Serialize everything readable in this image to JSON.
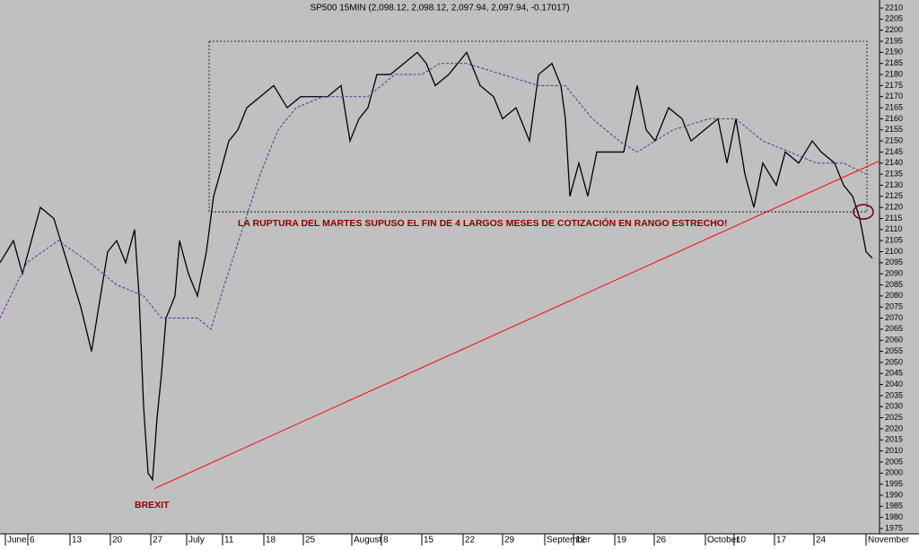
{
  "chart_data": {
    "type": "line",
    "title": "SP500 15MIN (2,098.12, 2,098.12, 2,097.94, 2,097.94, -0.17017)",
    "annotations": [
      "LA RUPTURA DEL MARTES SUPUSO EL FIN DE 4 LARGOS MESES DE COTIZACIÓN EN RANGO ESTRECHO!",
      "BREXIT"
    ],
    "xlim": [
      0,
      98
    ],
    "ylim": [
      1975,
      2210
    ],
    "grid": false,
    "background": "#c0c0c0",
    "xticks": [
      {
        "value": 0.8,
        "label": "June"
      },
      {
        "value": 3.3,
        "label": "6"
      },
      {
        "value": 8,
        "label": "13"
      },
      {
        "value": 12.5,
        "label": "20"
      },
      {
        "value": 17,
        "label": "27"
      },
      {
        "value": 21,
        "label": "July"
      },
      {
        "value": 25,
        "label": "11"
      },
      {
        "value": 29.6,
        "label": "18"
      },
      {
        "value": 34,
        "label": "25"
      },
      {
        "value": 39.4,
        "label": "August"
      },
      {
        "value": 42.7,
        "label": "8"
      },
      {
        "value": 47.2,
        "label": "15"
      },
      {
        "value": 51.8,
        "label": "22"
      },
      {
        "value": 56.2,
        "label": "29"
      },
      {
        "value": 60.9,
        "label": "September"
      },
      {
        "value": 64.1,
        "label": "12"
      },
      {
        "value": 68.7,
        "label": "19"
      },
      {
        "value": 73.1,
        "label": "26"
      },
      {
        "value": 78.8,
        "label": "October"
      },
      {
        "value": 82,
        "label": "10"
      },
      {
        "value": 86.5,
        "label": "17"
      },
      {
        "value": 90.9,
        "label": "24"
      },
      {
        "value": 96.7,
        "label": "November"
      }
    ],
    "yticks": [
      1975,
      1980,
      1985,
      1990,
      1995,
      2000,
      2005,
      2010,
      2015,
      2020,
      2025,
      2030,
      2035,
      2040,
      2045,
      2050,
      2055,
      2060,
      2065,
      2070,
      2075,
      2080,
      2085,
      2090,
      2095,
      2100,
      2105,
      2110,
      2115,
      2120,
      2125,
      2130,
      2135,
      2140,
      2145,
      2150,
      2155,
      2160,
      2165,
      2170,
      2175,
      2180,
      2185,
      2190,
      2195,
      2200,
      2205,
      2210
    ],
    "series": [
      {
        "name": "SP500",
        "color": "#000000",
        "dash": false,
        "x": [
          0,
          1.5,
          2.5,
          4.5,
          6,
          7.5,
          9,
          10.2,
          11,
          12,
          13,
          14,
          15,
          15.5,
          16,
          16.5,
          17,
          17.5,
          18,
          18.5,
          19.5,
          20,
          21,
          22,
          23,
          23.8,
          24.5,
          25.5,
          26.5,
          27.5,
          29,
          30.5,
          32,
          33.5,
          35,
          36.5,
          38,
          39,
          40,
          41,
          42,
          43.5,
          45,
          46.5,
          47.5,
          48.5,
          50,
          52,
          53.5,
          55,
          56,
          57.5,
          59,
          60,
          61.5,
          62.5,
          63,
          63.5,
          64.5,
          65.5,
          66.5,
          68,
          69.5,
          71,
          72,
          73,
          74.5,
          76,
          77,
          78.5,
          80,
          81,
          82,
          83,
          84,
          85,
          86.5,
          87.5,
          89,
          90.5,
          91.5,
          93,
          94,
          95,
          95.8,
          96.5,
          97.2
        ],
        "values": [
          2095,
          2105,
          2090,
          2120,
          2115,
          2095,
          2075,
          2055,
          2075,
          2100,
          2105,
          2095,
          2110,
          2080,
          2030,
          2000,
          1997,
          2025,
          2045,
          2070,
          2080,
          2105,
          2090,
          2080,
          2100,
          2125,
          2135,
          2150,
          2155,
          2165,
          2170,
          2175,
          2165,
          2170,
          2170,
          2170,
          2175,
          2150,
          2160,
          2165,
          2180,
          2180,
          2185,
          2190,
          2185,
          2175,
          2180,
          2190,
          2175,
          2170,
          2160,
          2165,
          2150,
          2180,
          2185,
          2175,
          2160,
          2125,
          2140,
          2125,
          2145,
          2145,
          2145,
          2175,
          2155,
          2150,
          2165,
          2160,
          2150,
          2155,
          2160,
          2140,
          2160,
          2135,
          2120,
          2140,
          2130,
          2145,
          2140,
          2150,
          2145,
          2140,
          2130,
          2125,
          2115,
          2100,
          2097
        ]
      },
      {
        "name": "Moving average",
        "color": "#5b2c8f",
        "dash": true,
        "x": [
          0,
          3,
          6.5,
          10,
          13,
          16,
          18,
          19.5,
          22,
          23.5,
          25,
          27,
          29,
          31,
          33,
          36,
          39,
          41,
          44,
          47,
          49,
          52,
          56,
          60,
          63,
          66,
          69,
          71,
          75,
          79,
          82,
          85,
          88,
          91,
          94,
          96.5
        ],
        "values": [
          2070,
          2095,
          2105,
          2095,
          2085,
          2080,
          2070,
          2070,
          2070,
          2065,
          2085,
          2110,
          2135,
          2155,
          2165,
          2170,
          2170,
          2170,
          2180,
          2180,
          2185,
          2185,
          2180,
          2175,
          2175,
          2160,
          2150,
          2145,
          2155,
          2160,
          2160,
          2150,
          2145,
          2140,
          2140,
          2135
        ]
      }
    ],
    "trendline": {
      "color": "#ff0000",
      "x": [
        17.2,
        98
      ],
      "y": [
        1993,
        2141
      ]
    },
    "range_box": {
      "x": [
        23.3,
        96.6
      ],
      "y": [
        2118,
        2195
      ]
    },
    "highlight": {
      "color": "#6b0000",
      "x": 96.2,
      "y": 2118
    }
  }
}
